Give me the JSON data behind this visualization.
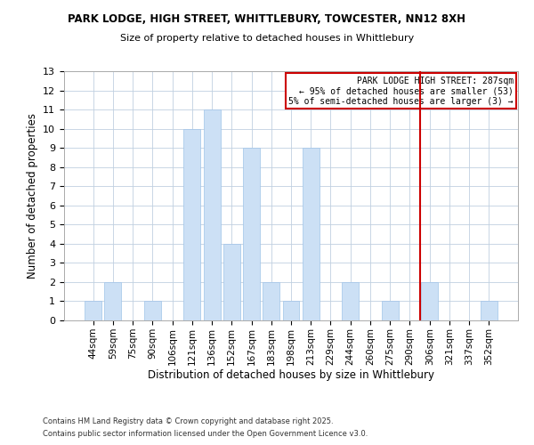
{
  "title_line1": "PARK LODGE, HIGH STREET, WHITTLEBURY, TOWCESTER, NN12 8XH",
  "title_line2": "Size of property relative to detached houses in Whittlebury",
  "xlabel": "Distribution of detached houses by size in Whittlebury",
  "ylabel": "Number of detached properties",
  "bar_labels": [
    "44sqm",
    "59sqm",
    "75sqm",
    "90sqm",
    "106sqm",
    "121sqm",
    "136sqm",
    "152sqm",
    "167sqm",
    "183sqm",
    "198sqm",
    "213sqm",
    "229sqm",
    "244sqm",
    "260sqm",
    "275sqm",
    "290sqm",
    "306sqm",
    "321sqm",
    "337sqm",
    "352sqm"
  ],
  "bar_values": [
    1,
    2,
    0,
    1,
    0,
    10,
    11,
    4,
    9,
    2,
    1,
    9,
    0,
    2,
    0,
    1,
    0,
    2,
    0,
    0,
    1
  ],
  "bar_color": "#cce0f5",
  "bar_edge_color": "#a0c4e8",
  "ylim": [
    0,
    13
  ],
  "yticks": [
    0,
    1,
    2,
    3,
    4,
    5,
    6,
    7,
    8,
    9,
    10,
    11,
    12,
    13
  ],
  "vline_x": 16.5,
  "vline_color": "#cc0000",
  "annotation_title": "PARK LODGE HIGH STREET: 287sqm",
  "annotation_line2": "← 95% of detached houses are smaller (53)",
  "annotation_line3": "5% of semi-detached houses are larger (3) →",
  "annotation_box_color": "#cc0000",
  "footer_line1": "Contains HM Land Registry data © Crown copyright and database right 2025.",
  "footer_line2": "Contains public sector information licensed under the Open Government Licence v3.0.",
  "background_color": "#ffffff",
  "grid_color": "#c0d0e0"
}
